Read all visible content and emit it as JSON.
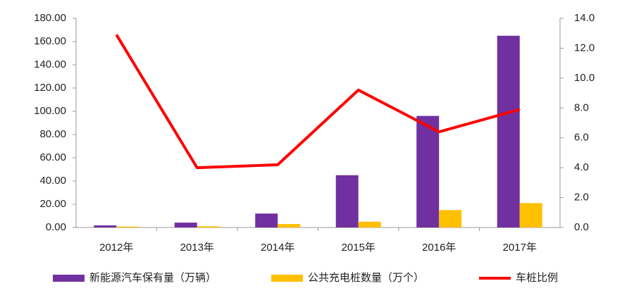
{
  "chart_data": {
    "type": "bar",
    "categories": [
      "2012年",
      "2013年",
      "2014年",
      "2015年",
      "2016年",
      "2017年"
    ],
    "series": [
      {
        "name": "新能源汽车保有量（万辆）",
        "type": "bar",
        "color": "#7030a0",
        "values": [
          1.8,
          4.2,
          12,
          45,
          96,
          165
        ]
      },
      {
        "name": "公共充电桩数量（万个）",
        "type": "bar",
        "color": "#ffc000",
        "values": [
          0.8,
          1.0,
          3,
          5,
          15,
          21
        ]
      },
      {
        "name": "车桩比例",
        "type": "line",
        "axis": "y2",
        "color": "#ff0000",
        "values": [
          12.9,
          4.0,
          4.2,
          9.2,
          6.4,
          7.9
        ]
      }
    ],
    "ylim": [
      0,
      180
    ],
    "yticks": [
      {
        "value": 0,
        "label": "0.00"
      },
      {
        "value": 20,
        "label": "20.00"
      },
      {
        "value": 40,
        "label": "40.00"
      },
      {
        "value": 60,
        "label": "60.00"
      },
      {
        "value": 80,
        "label": "80.00"
      },
      {
        "value": 100,
        "label": "100.00"
      },
      {
        "value": 120,
        "label": "120.00"
      },
      {
        "value": 140,
        "label": "140.00"
      },
      {
        "value": 160,
        "label": "160.00"
      },
      {
        "value": 180,
        "label": "180.00"
      }
    ],
    "y2lim": [
      0,
      14
    ],
    "y2ticks": [
      {
        "value": 0,
        "label": "0.0"
      },
      {
        "value": 2,
        "label": "2.0"
      },
      {
        "value": 4,
        "label": "4.0"
      },
      {
        "value": 6,
        "label": "6.0"
      },
      {
        "value": 8,
        "label": "8.0"
      },
      {
        "value": 10,
        "label": "10.0"
      },
      {
        "value": 12,
        "label": "12.0"
      },
      {
        "value": 14,
        "label": "14.0"
      }
    ],
    "grid": false,
    "legend": "bottom"
  }
}
